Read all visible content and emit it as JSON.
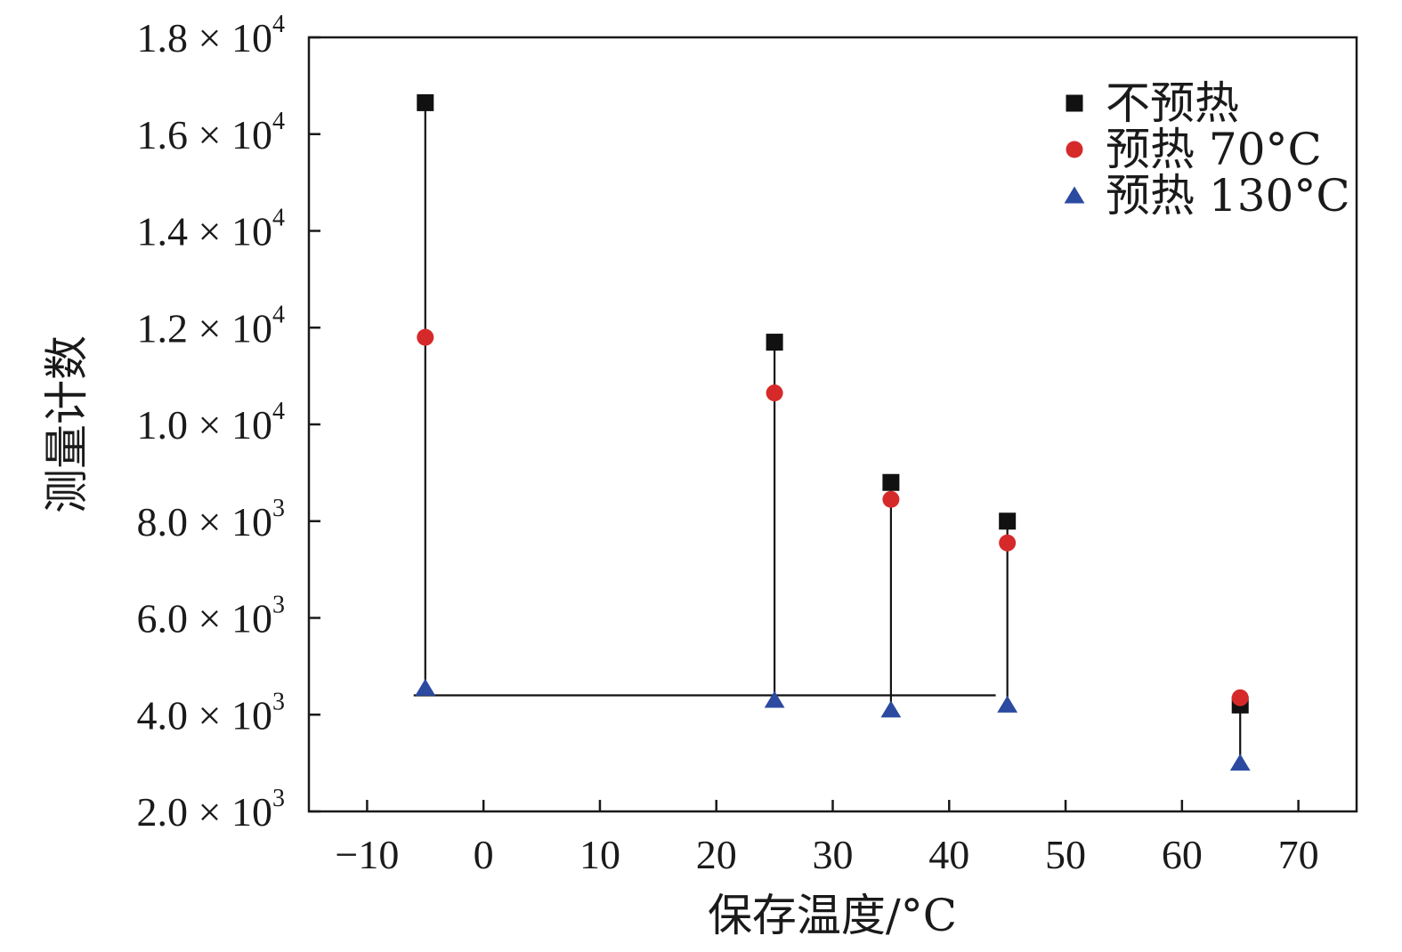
{
  "chart_data": {
    "type": "scatter",
    "xlabel": "保存温度/°C",
    "ylabel": "测量计数",
    "xlim": [
      -15,
      75
    ],
    "ylim": [
      2000,
      18000
    ],
    "x_ticks": [
      -10,
      0,
      10,
      20,
      30,
      40,
      50,
      60,
      70
    ],
    "x_tick_labels": [
      "−10",
      "0",
      "10",
      "20",
      "30",
      "40",
      "50",
      "60",
      "70"
    ],
    "y_ticks": [
      {
        "value": 2000,
        "mantissa": "2.0",
        "exponent": "3"
      },
      {
        "value": 4000,
        "mantissa": "4.0",
        "exponent": "3"
      },
      {
        "value": 6000,
        "mantissa": "6.0",
        "exponent": "3"
      },
      {
        "value": 8000,
        "mantissa": "8.0",
        "exponent": "3"
      },
      {
        "value": 10000,
        "mantissa": "1.0",
        "exponent": "4"
      },
      {
        "value": 12000,
        "mantissa": "1.2",
        "exponent": "4"
      },
      {
        "value": 14000,
        "mantissa": "1.4",
        "exponent": "4"
      },
      {
        "value": 16000,
        "mantissa": "1.6",
        "exponent": "4"
      },
      {
        "value": 18000,
        "mantissa": "1.8",
        "exponent": "4"
      }
    ],
    "y_tick_times": "×",
    "y_tick_base": "10",
    "x": [
      -5,
      25,
      35,
      45,
      65
    ],
    "series": [
      {
        "name": "不预热",
        "marker": "square",
        "color": "#111111",
        "values": [
          16650,
          11700,
          8800,
          8000,
          4200
        ]
      },
      {
        "name": "预热 70°C",
        "marker": "circle",
        "color": "#d62a2a",
        "values": [
          11800,
          10650,
          8450,
          7550,
          4350
        ]
      },
      {
        "name": "预热 130°C",
        "marker": "triangle",
        "color": "#2b4aa0",
        "values": [
          4550,
          4300,
          4100,
          4200,
          3000
        ]
      }
    ],
    "drop_lines": true,
    "baseline_segment": {
      "x_from": -6,
      "x_to": 44,
      "y": 4400
    },
    "legend_position": "top-right",
    "grid": false
  }
}
